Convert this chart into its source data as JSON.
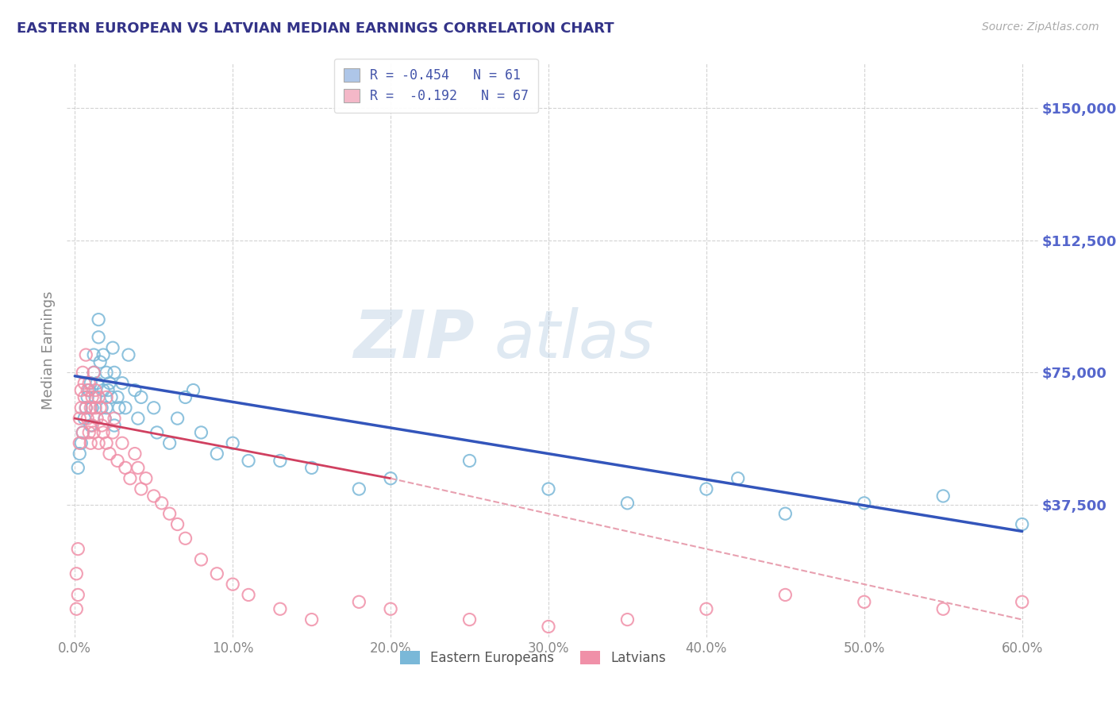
{
  "title": "EASTERN EUROPEAN VS LATVIAN MEDIAN EARNINGS CORRELATION CHART",
  "source": "Source: ZipAtlas.com",
  "ylabel": "Median Earnings",
  "xlabel_ticks": [
    "0.0%",
    "10.0%",
    "20.0%",
    "30.0%",
    "40.0%",
    "50.0%",
    "60.0%"
  ],
  "ytick_labels": [
    "$37,500",
    "$75,000",
    "$112,500",
    "$150,000"
  ],
  "ytick_values": [
    37500,
    75000,
    112500,
    150000
  ],
  "ylim": [
    0,
    162500
  ],
  "xlim": [
    -0.005,
    0.61
  ],
  "legend_line1": "R = -0.454   N = 61",
  "legend_line2": "R =  -0.192   N = 67",
  "legend_color1": "#aec6e8",
  "legend_color2": "#f4b8c8",
  "blue_scatter_color": "#7ab8d8",
  "pink_scatter_color": "#f090a8",
  "blue_line_color": "#3355bb",
  "pink_line_color": "#d04060",
  "pink_dash_color": "#e8a0b0",
  "grid_color": "#c8c8c8",
  "title_color": "#333388",
  "axis_label_color": "#666688",
  "tick_color_y": "#5566cc",
  "watermark_color": "#d0dce8",
  "background_color": "#ffffff",
  "blue_points_x": [
    0.002,
    0.003,
    0.004,
    0.005,
    0.006,
    0.007,
    0.008,
    0.009,
    0.01,
    0.01,
    0.011,
    0.012,
    0.012,
    0.013,
    0.014,
    0.015,
    0.015,
    0.016,
    0.017,
    0.018,
    0.018,
    0.019,
    0.02,
    0.02,
    0.021,
    0.022,
    0.023,
    0.024,
    0.025,
    0.025,
    0.027,
    0.028,
    0.03,
    0.032,
    0.034,
    0.038,
    0.04,
    0.042,
    0.05,
    0.052,
    0.06,
    0.065,
    0.07,
    0.075,
    0.08,
    0.09,
    0.1,
    0.11,
    0.13,
    0.15,
    0.18,
    0.2,
    0.25,
    0.3,
    0.35,
    0.4,
    0.42,
    0.45,
    0.5,
    0.55,
    0.6
  ],
  "blue_points_y": [
    48000,
    52000,
    55000,
    58000,
    62000,
    65000,
    68000,
    70000,
    72000,
    60000,
    65000,
    75000,
    80000,
    68000,
    72000,
    85000,
    90000,
    78000,
    65000,
    80000,
    70000,
    62000,
    75000,
    65000,
    70000,
    72000,
    68000,
    82000,
    75000,
    60000,
    68000,
    65000,
    72000,
    65000,
    80000,
    70000,
    62000,
    68000,
    65000,
    58000,
    55000,
    62000,
    68000,
    70000,
    58000,
    52000,
    55000,
    50000,
    50000,
    48000,
    42000,
    45000,
    50000,
    42000,
    38000,
    42000,
    45000,
    35000,
    38000,
    40000,
    32000
  ],
  "pink_points_x": [
    0.001,
    0.001,
    0.002,
    0.002,
    0.003,
    0.003,
    0.004,
    0.004,
    0.005,
    0.005,
    0.006,
    0.006,
    0.007,
    0.007,
    0.008,
    0.008,
    0.009,
    0.009,
    0.01,
    0.01,
    0.011,
    0.011,
    0.012,
    0.012,
    0.013,
    0.013,
    0.014,
    0.015,
    0.015,
    0.016,
    0.017,
    0.018,
    0.019,
    0.02,
    0.02,
    0.022,
    0.024,
    0.025,
    0.027,
    0.03,
    0.032,
    0.035,
    0.038,
    0.04,
    0.042,
    0.045,
    0.05,
    0.055,
    0.06,
    0.065,
    0.07,
    0.08,
    0.09,
    0.1,
    0.11,
    0.13,
    0.15,
    0.18,
    0.2,
    0.25,
    0.3,
    0.35,
    0.4,
    0.45,
    0.5,
    0.55,
    0.6
  ],
  "pink_points_y": [
    18000,
    8000,
    25000,
    12000,
    62000,
    55000,
    70000,
    65000,
    75000,
    58000,
    68000,
    72000,
    65000,
    80000,
    62000,
    70000,
    58000,
    72000,
    65000,
    55000,
    68000,
    60000,
    75000,
    58000,
    65000,
    70000,
    62000,
    68000,
    55000,
    65000,
    60000,
    58000,
    62000,
    55000,
    68000,
    52000,
    58000,
    62000,
    50000,
    55000,
    48000,
    45000,
    52000,
    48000,
    42000,
    45000,
    40000,
    38000,
    35000,
    32000,
    28000,
    22000,
    18000,
    15000,
    12000,
    8000,
    5000,
    10000,
    8000,
    5000,
    3000,
    5000,
    8000,
    12000,
    10000,
    8000,
    10000
  ]
}
